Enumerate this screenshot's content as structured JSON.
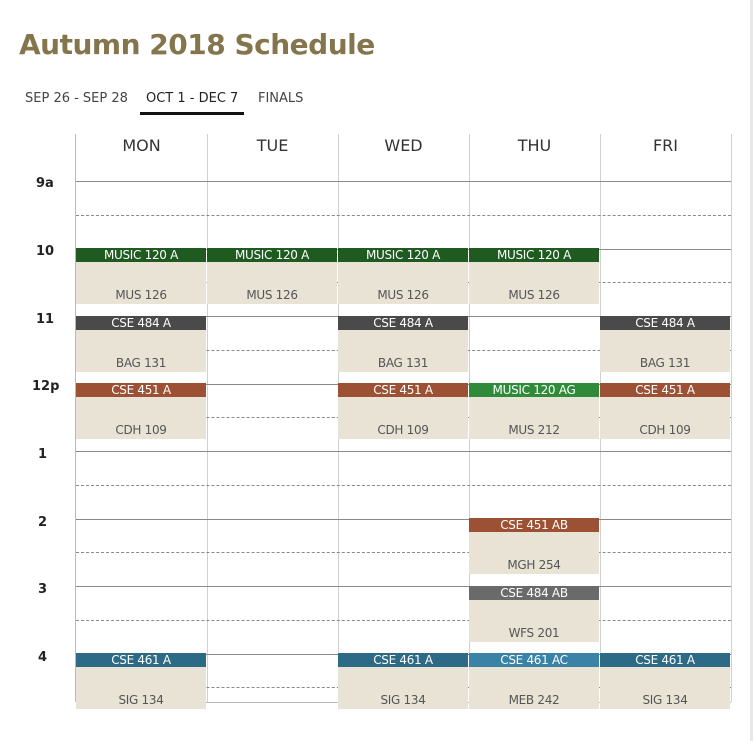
{
  "title": "Autumn 2018 Schedule",
  "tabs": [
    {
      "label": "SEP 26 - SEP 28",
      "active": false
    },
    {
      "label": "OCT 1 - DEC 7",
      "active": true
    },
    {
      "label": "FINALS",
      "active": false
    }
  ],
  "days": [
    "MON",
    "TUE",
    "WED",
    "THU",
    "FRI"
  ],
  "hours": [
    "9a",
    "10",
    "11",
    "12p",
    "1",
    "2",
    "3",
    "4"
  ],
  "colors": {
    "music": "#1f5a20",
    "music_alt": "#2e8b3a",
    "cse484": "#4a4a4a",
    "cse484_alt": "#6a6a6a",
    "cse451": "#9c5034",
    "cse461": "#2c6a86",
    "cse461_alt": "#3a82a6",
    "room_bg": "#e8e3d4",
    "title": "#85754d"
  },
  "events": [
    {
      "day": 0,
      "start": 10.0,
      "end": 10.83,
      "course": "MUSIC 120 A",
      "room": "MUS 126",
      "color": "#1f5a20"
    },
    {
      "day": 1,
      "start": 10.0,
      "end": 10.83,
      "course": "MUSIC 120 A",
      "room": "MUS 126",
      "color": "#1f5a20"
    },
    {
      "day": 2,
      "start": 10.0,
      "end": 10.83,
      "course": "MUSIC 120 A",
      "room": "MUS 126",
      "color": "#1f5a20"
    },
    {
      "day": 3,
      "start": 10.0,
      "end": 10.83,
      "course": "MUSIC 120 A",
      "room": "MUS 126",
      "color": "#1f5a20"
    },
    {
      "day": 0,
      "start": 11.0,
      "end": 11.83,
      "course": "CSE 484 A",
      "room": "BAG 131",
      "color": "#4a4a4a"
    },
    {
      "day": 2,
      "start": 11.0,
      "end": 11.83,
      "course": "CSE 484 A",
      "room": "BAG 131",
      "color": "#4a4a4a"
    },
    {
      "day": 4,
      "start": 11.0,
      "end": 11.83,
      "course": "CSE 484 A",
      "room": "BAG 131",
      "color": "#4a4a4a"
    },
    {
      "day": 0,
      "start": 12.0,
      "end": 12.83,
      "course": "CSE 451 A",
      "room": "CDH 109",
      "color": "#9c5034"
    },
    {
      "day": 2,
      "start": 12.0,
      "end": 12.83,
      "course": "CSE 451 A",
      "room": "CDH 109",
      "color": "#9c5034"
    },
    {
      "day": 3,
      "start": 12.0,
      "end": 12.83,
      "course": "MUSIC 120 AG",
      "room": "MUS 212",
      "color": "#2e8b3a"
    },
    {
      "day": 4,
      "start": 12.0,
      "end": 12.83,
      "course": "CSE 451 A",
      "room": "CDH 109",
      "color": "#9c5034"
    },
    {
      "day": 3,
      "start": 14.0,
      "end": 14.83,
      "course": "CSE 451 AB",
      "room": "MGH 254",
      "color": "#9c5034"
    },
    {
      "day": 3,
      "start": 15.0,
      "end": 15.83,
      "course": "CSE 484 AB",
      "room": "WFS 201",
      "color": "#6a6a6a"
    },
    {
      "day": 0,
      "start": 16.0,
      "end": 16.83,
      "course": "CSE 461 A",
      "room": "SIG 134",
      "color": "#2c6a86"
    },
    {
      "day": 2,
      "start": 16.0,
      "end": 16.83,
      "course": "CSE 461 A",
      "room": "SIG 134",
      "color": "#2c6a86"
    },
    {
      "day": 3,
      "start": 16.0,
      "end": 16.83,
      "course": "CSE 461 AC",
      "room": "MEB 242",
      "color": "#3a82a6"
    },
    {
      "day": 4,
      "start": 16.0,
      "end": 16.83,
      "course": "CSE 461 A",
      "room": "SIG 134",
      "color": "#2c6a86"
    }
  ]
}
